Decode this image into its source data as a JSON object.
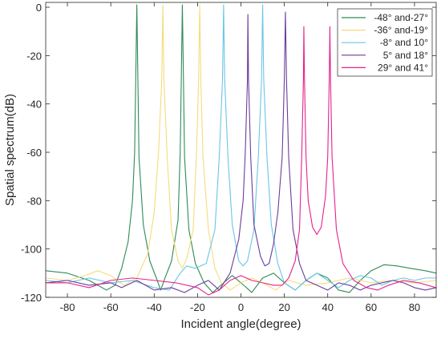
{
  "chart_data": {
    "type": "line",
    "title": "",
    "xlabel": "Incident angle(degree)",
    "ylabel": "Spatial spectrum(dB)",
    "xlim": [
      -90,
      90
    ],
    "ylim": [
      -120,
      2
    ],
    "xticks": [
      -80,
      -60,
      -40,
      -20,
      0,
      20,
      40,
      60,
      80
    ],
    "yticks": [
      0,
      -20,
      -40,
      -60,
      -80,
      -100,
      -120
    ],
    "grid": false,
    "legend_position": "top-right",
    "series": [
      {
        "name": "-48° and-27°",
        "color": "#2e8b57",
        "points": [
          [
            -90,
            -109
          ],
          [
            -80,
            -110
          ],
          [
            -70,
            -113
          ],
          [
            -62,
            -117
          ],
          [
            -58,
            -115
          ],
          [
            -55,
            -108
          ],
          [
            -52,
            -97
          ],
          [
            -50,
            -80
          ],
          [
            -49,
            -60
          ],
          [
            -48.5,
            -30
          ],
          [
            -48,
            1
          ],
          [
            -47.5,
            -30
          ],
          [
            -47,
            -62
          ],
          [
            -45,
            -90
          ],
          [
            -42,
            -105
          ],
          [
            -39,
            -112
          ],
          [
            -37,
            -117
          ],
          [
            -35,
            -112
          ],
          [
            -32,
            -105
          ],
          [
            -29,
            -88
          ],
          [
            -28,
            -60
          ],
          [
            -27.5,
            -30
          ],
          [
            -27,
            1
          ],
          [
            -26.5,
            -30
          ],
          [
            -26,
            -62
          ],
          [
            -24,
            -92
          ],
          [
            -21,
            -106
          ],
          [
            -17,
            -114
          ],
          [
            -13,
            -118
          ],
          [
            -8,
            -114
          ],
          [
            -4,
            -111
          ],
          [
            0,
            -114
          ],
          [
            5,
            -118
          ],
          [
            10,
            -112
          ],
          [
            15,
            -110
          ],
          [
            20,
            -114
          ],
          [
            25,
            -117
          ],
          [
            30,
            -113
          ],
          [
            35,
            -110
          ],
          [
            40,
            -112
          ],
          [
            45,
            -117
          ],
          [
            50,
            -118
          ],
          [
            55,
            -113
          ],
          [
            60,
            -109
          ],
          [
            66,
            -106.5
          ],
          [
            72,
            -107
          ],
          [
            78,
            -108
          ],
          [
            85,
            -109
          ],
          [
            90,
            -110
          ]
        ]
      },
      {
        "name": "-36° and-19°",
        "color": "#f5dc7a",
        "points": [
          [
            -90,
            -112
          ],
          [
            -80,
            -113
          ],
          [
            -72,
            -111
          ],
          [
            -66,
            -109
          ],
          [
            -60,
            -111
          ],
          [
            -54,
            -115
          ],
          [
            -48,
            -112
          ],
          [
            -43,
            -102
          ],
          [
            -40,
            -85
          ],
          [
            -38,
            -60
          ],
          [
            -36.5,
            -30
          ],
          [
            -36,
            1
          ],
          [
            -35.5,
            -30
          ],
          [
            -34,
            -62
          ],
          [
            -32,
            -92
          ],
          [
            -29,
            -105
          ],
          [
            -27,
            -108
          ],
          [
            -25,
            -104
          ],
          [
            -22,
            -92
          ],
          [
            -20.5,
            -60
          ],
          [
            -19.5,
            -30
          ],
          [
            -19,
            1
          ],
          [
            -18.5,
            -30
          ],
          [
            -17.5,
            -62
          ],
          [
            -15,
            -92
          ],
          [
            -12,
            -108
          ],
          [
            -9,
            -114
          ],
          [
            -5,
            -117
          ],
          [
            0,
            -114
          ],
          [
            5,
            -112
          ],
          [
            10,
            -114
          ],
          [
            16,
            -117
          ],
          [
            22,
            -113
          ],
          [
            30,
            -115
          ],
          [
            40,
            -114
          ],
          [
            50,
            -112
          ],
          [
            60,
            -114
          ],
          [
            70,
            -113
          ],
          [
            80,
            -114
          ],
          [
            90,
            -113
          ]
        ]
      },
      {
        "name": "-8° and 10°",
        "color": "#6ac5e8",
        "points": [
          [
            -90,
            -113
          ],
          [
            -80,
            -114
          ],
          [
            -70,
            -112
          ],
          [
            -60,
            -114
          ],
          [
            -50,
            -113
          ],
          [
            -40,
            -116
          ],
          [
            -33,
            -117
          ],
          [
            -28,
            -110
          ],
          [
            -25,
            -107
          ],
          [
            -21,
            -108
          ],
          [
            -16,
            -106
          ],
          [
            -12,
            -92
          ],
          [
            -10,
            -62
          ],
          [
            -8.5,
            -30
          ],
          [
            -8,
            1
          ],
          [
            -7.5,
            -30
          ],
          [
            -6,
            -62
          ],
          [
            -4,
            -90
          ],
          [
            -1,
            -105
          ],
          [
            1,
            -107
          ],
          [
            3,
            -105
          ],
          [
            6,
            -92
          ],
          [
            8,
            -62
          ],
          [
            9.5,
            -30
          ],
          [
            10,
            1
          ],
          [
            10.5,
            -30
          ],
          [
            12,
            -62
          ],
          [
            14,
            -90
          ],
          [
            17,
            -106
          ],
          [
            20,
            -114
          ],
          [
            25,
            -117
          ],
          [
            30,
            -113
          ],
          [
            35,
            -110
          ],
          [
            40,
            -113
          ],
          [
            45,
            -116
          ],
          [
            50,
            -113
          ],
          [
            55,
            -111
          ],
          [
            60,
            -112
          ],
          [
            65,
            -115
          ],
          [
            70,
            -113
          ],
          [
            75,
            -112
          ],
          [
            80,
            -113
          ],
          [
            85,
            -112
          ],
          [
            90,
            -112
          ]
        ]
      },
      {
        "name": "5° and 18°",
        "color": "#6a3d9a",
        "points": [
          [
            -90,
            -114
          ],
          [
            -80,
            -113
          ],
          [
            -70,
            -115
          ],
          [
            -60,
            -114
          ],
          [
            -55,
            -116
          ],
          [
            -48,
            -113
          ],
          [
            -40,
            -117
          ],
          [
            -32,
            -116
          ],
          [
            -26,
            -118
          ],
          [
            -20,
            -115
          ],
          [
            -15,
            -113
          ],
          [
            -10,
            -117
          ],
          [
            -5,
            -110
          ],
          [
            -1,
            -96
          ],
          [
            1,
            -80
          ],
          [
            2,
            -60
          ],
          [
            3,
            -30
          ],
          [
            3.2,
            -3
          ],
          [
            3.5,
            -30
          ],
          [
            4.5,
            -62
          ],
          [
            6,
            -90
          ],
          [
            9,
            -103
          ],
          [
            11,
            -107
          ],
          [
            13,
            -106
          ],
          [
            15,
            -98
          ],
          [
            17,
            -85
          ],
          [
            19,
            -62
          ],
          [
            20,
            -30
          ],
          [
            20.5,
            -2
          ],
          [
            21,
            -30
          ],
          [
            22,
            -62
          ],
          [
            24,
            -92
          ],
          [
            27,
            -106
          ],
          [
            30,
            -113
          ],
          [
            35,
            -115
          ],
          [
            40,
            -117
          ],
          [
            45,
            -114
          ],
          [
            50,
            -115
          ],
          [
            55,
            -117
          ],
          [
            60,
            -115
          ],
          [
            65,
            -114
          ],
          [
            70,
            -113
          ],
          [
            75,
            -114
          ],
          [
            80,
            -116
          ],
          [
            85,
            -117
          ],
          [
            90,
            -116
          ]
        ]
      },
      {
        "name": "29° and 41°",
        "color": "#e6228c",
        "points": [
          [
            -90,
            -114
          ],
          [
            -80,
            -114
          ],
          [
            -70,
            -116
          ],
          [
            -60,
            -113
          ],
          [
            -50,
            -112
          ],
          [
            -40,
            -113
          ],
          [
            -30,
            -114
          ],
          [
            -20,
            -116
          ],
          [
            -15,
            -119
          ],
          [
            -10,
            -117
          ],
          [
            -5,
            -113
          ],
          [
            0,
            -111
          ],
          [
            5,
            -113
          ],
          [
            10,
            -114
          ],
          [
            15,
            -115
          ],
          [
            19,
            -115
          ],
          [
            22,
            -112
          ],
          [
            25,
            -105
          ],
          [
            27,
            -92
          ],
          [
            28,
            -62
          ],
          [
            28.8,
            -30
          ],
          [
            29,
            -8
          ],
          [
            29.3,
            -30
          ],
          [
            30,
            -62
          ],
          [
            31,
            -80
          ],
          [
            33,
            -91
          ],
          [
            35,
            -94
          ],
          [
            37,
            -91
          ],
          [
            39,
            -78
          ],
          [
            40,
            -62
          ],
          [
            40.7,
            -30
          ],
          [
            41,
            -8
          ],
          [
            41.3,
            -30
          ],
          [
            42,
            -62
          ],
          [
            44,
            -92
          ],
          [
            47,
            -106
          ],
          [
            52,
            -113
          ],
          [
            58,
            -116
          ],
          [
            63,
            -117
          ],
          [
            68,
            -115
          ],
          [
            75,
            -113
          ],
          [
            82,
            -114
          ],
          [
            90,
            -116
          ]
        ]
      }
    ]
  }
}
